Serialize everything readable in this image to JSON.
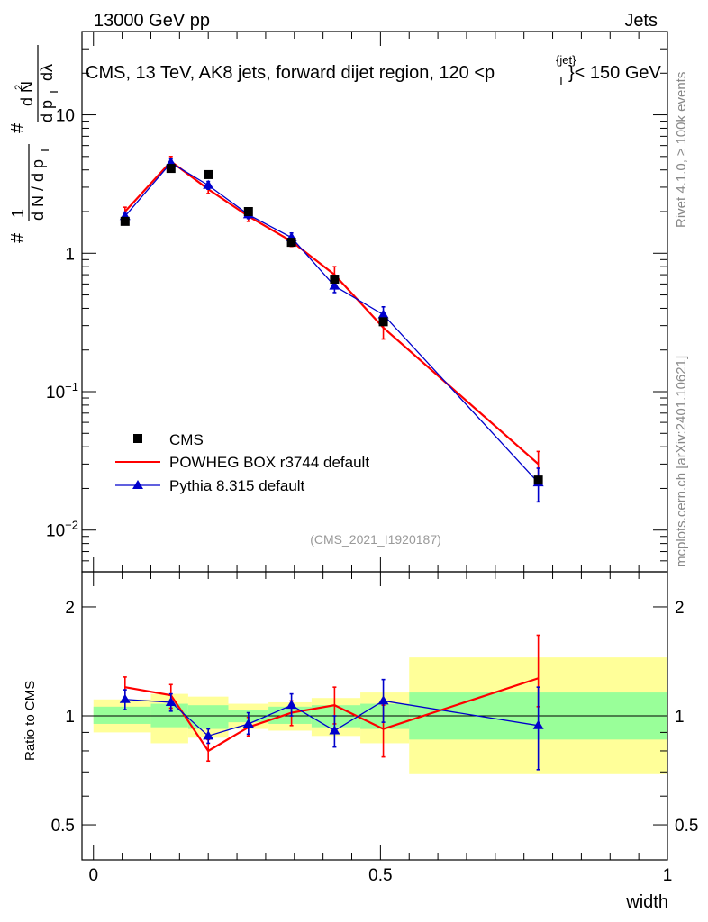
{
  "header": {
    "left": "13000 GeV pp",
    "right": "Jets"
  },
  "plot_title_main": "CMS, 13 TeV, AK8 jets, forward dijet region, 120 <p",
  "plot_title_sup": "{jet}",
  "plot_title_sub": "T",
  "plot_title_end": "}< 150 GeV",
  "side_labels": {
    "rivet": "Rivet 4.1.0, ≥ 100k events",
    "mcplots": "mcplots.cern.ch [arXiv:2401.10621]"
  },
  "analysis_id": "(CMS_2021_I1920187)",
  "colors": {
    "cms": "#000000",
    "powheg": "#ff0000",
    "pythia": "#0000cc",
    "band_inner": "#99ff99",
    "band_outer": "#ffff99"
  },
  "chart_data": [
    {
      "type": "line",
      "panel": "main",
      "yscale": "log",
      "ylim": [
        0.005,
        40
      ],
      "xlim": [
        -0.02,
        1.0
      ],
      "ylabel": "# 1 / dN/dpT  # d²N / dpT dλ",
      "y_ticks": [
        {
          "value": 0.01,
          "base": "10",
          "exp": "−2"
        },
        {
          "value": 0.1,
          "base": "10",
          "exp": "−1"
        },
        {
          "value": 1,
          "base": "1",
          "exp": ""
        },
        {
          "value": 10,
          "base": "10",
          "exp": ""
        }
      ],
      "legend": [
        "CMS",
        "POWHEG BOX r3744 default",
        "Pythia 8.315 default"
      ],
      "series": [
        {
          "name": "CMS",
          "marker": "square",
          "x": [
            0.055,
            0.135,
            0.2,
            0.27,
            0.345,
            0.42,
            0.505,
            0.775
          ],
          "y": [
            1.7,
            4.1,
            3.7,
            2.0,
            1.2,
            0.65,
            0.32,
            0.023
          ]
        },
        {
          "name": "POWHEG BOX r3744 default",
          "marker": "none",
          "x": [
            0.055,
            0.135,
            0.2,
            0.27,
            0.345,
            0.42,
            0.505,
            0.775
          ],
          "y": [
            2.0,
            4.6,
            2.9,
            1.85,
            1.22,
            0.7,
            0.29,
            0.03
          ],
          "err_lo": [
            1.85,
            4.2,
            2.7,
            1.7,
            1.12,
            0.6,
            0.24,
            0.024
          ],
          "err_hi": [
            2.15,
            5.0,
            3.1,
            2.0,
            1.32,
            0.8,
            0.34,
            0.037
          ]
        },
        {
          "name": "Pythia 8.315 default",
          "marker": "triangle",
          "x": [
            0.055,
            0.135,
            0.2,
            0.27,
            0.345,
            0.42,
            0.505,
            0.775
          ],
          "y": [
            1.85,
            4.5,
            3.1,
            1.9,
            1.3,
            0.58,
            0.36,
            0.022
          ],
          "err_lo": [
            1.72,
            4.2,
            2.9,
            1.78,
            1.2,
            0.52,
            0.31,
            0.016
          ],
          "err_hi": [
            1.98,
            4.8,
            3.3,
            2.02,
            1.4,
            0.65,
            0.41,
            0.028
          ]
        }
      ]
    },
    {
      "type": "line",
      "panel": "ratio",
      "yscale": "log",
      "ylabel": "Ratio to CMS",
      "ylim": [
        0.4,
        2.5
      ],
      "xlim": [
        -0.02,
        1.0
      ],
      "xlabel": "width",
      "x_ticks": [
        {
          "value": 0,
          "label": "0"
        },
        {
          "value": 0.5,
          "label": "0.5"
        },
        {
          "value": 1,
          "label": "1"
        }
      ],
      "y_ticks": [
        {
          "value": 0.5,
          "label": "0.5"
        },
        {
          "value": 1,
          "label": "1"
        },
        {
          "value": 2,
          "label": "2"
        }
      ],
      "bands": [
        {
          "x0": 0.0,
          "x1": 0.1,
          "inner": [
            0.95,
            1.06
          ],
          "outer": [
            0.9,
            1.11
          ]
        },
        {
          "x0": 0.1,
          "x1": 0.165,
          "inner": [
            0.93,
            1.08
          ],
          "outer": [
            0.84,
            1.15
          ]
        },
        {
          "x0": 0.165,
          "x1": 0.235,
          "inner": [
            0.92,
            1.07
          ],
          "outer": [
            0.87,
            1.13
          ]
        },
        {
          "x0": 0.235,
          "x1": 0.305,
          "inner": [
            0.96,
            1.04
          ],
          "outer": [
            0.92,
            1.08
          ]
        },
        {
          "x0": 0.305,
          "x1": 0.38,
          "inner": [
            0.95,
            1.06
          ],
          "outer": [
            0.91,
            1.09
          ]
        },
        {
          "x0": 0.38,
          "x1": 0.465,
          "inner": [
            0.93,
            1.07
          ],
          "outer": [
            0.88,
            1.12
          ]
        },
        {
          "x0": 0.465,
          "x1": 0.55,
          "inner": [
            0.92,
            1.08
          ],
          "outer": [
            0.84,
            1.16
          ]
        },
        {
          "x0": 0.55,
          "x1": 1.0,
          "inner": [
            0.86,
            1.16
          ],
          "outer": [
            0.69,
            1.45
          ]
        }
      ],
      "series": [
        {
          "name": "POWHEG BOX r3744 default",
          "x": [
            0.055,
            0.135,
            0.2,
            0.27,
            0.345,
            0.42,
            0.505,
            0.775
          ],
          "y": [
            1.2,
            1.14,
            0.8,
            0.93,
            1.02,
            1.07,
            0.92,
            1.27
          ],
          "err_lo": [
            1.12,
            1.05,
            0.75,
            0.88,
            0.94,
            0.95,
            0.77,
            1.06
          ],
          "err_hi": [
            1.28,
            1.22,
            0.86,
            0.99,
            1.1,
            1.2,
            1.07,
            1.67
          ]
        },
        {
          "name": "Pythia 8.315 default",
          "x": [
            0.055,
            0.135,
            0.2,
            0.27,
            0.345,
            0.42,
            0.505,
            0.775
          ],
          "y": [
            1.11,
            1.09,
            0.88,
            0.95,
            1.07,
            0.91,
            1.1,
            0.94
          ],
          "err_lo": [
            1.04,
            1.03,
            0.84,
            0.89,
            1.0,
            0.82,
            0.96,
            0.71
          ],
          "err_hi": [
            1.18,
            1.15,
            0.92,
            1.02,
            1.15,
            1.0,
            1.26,
            1.2
          ]
        }
      ]
    }
  ]
}
